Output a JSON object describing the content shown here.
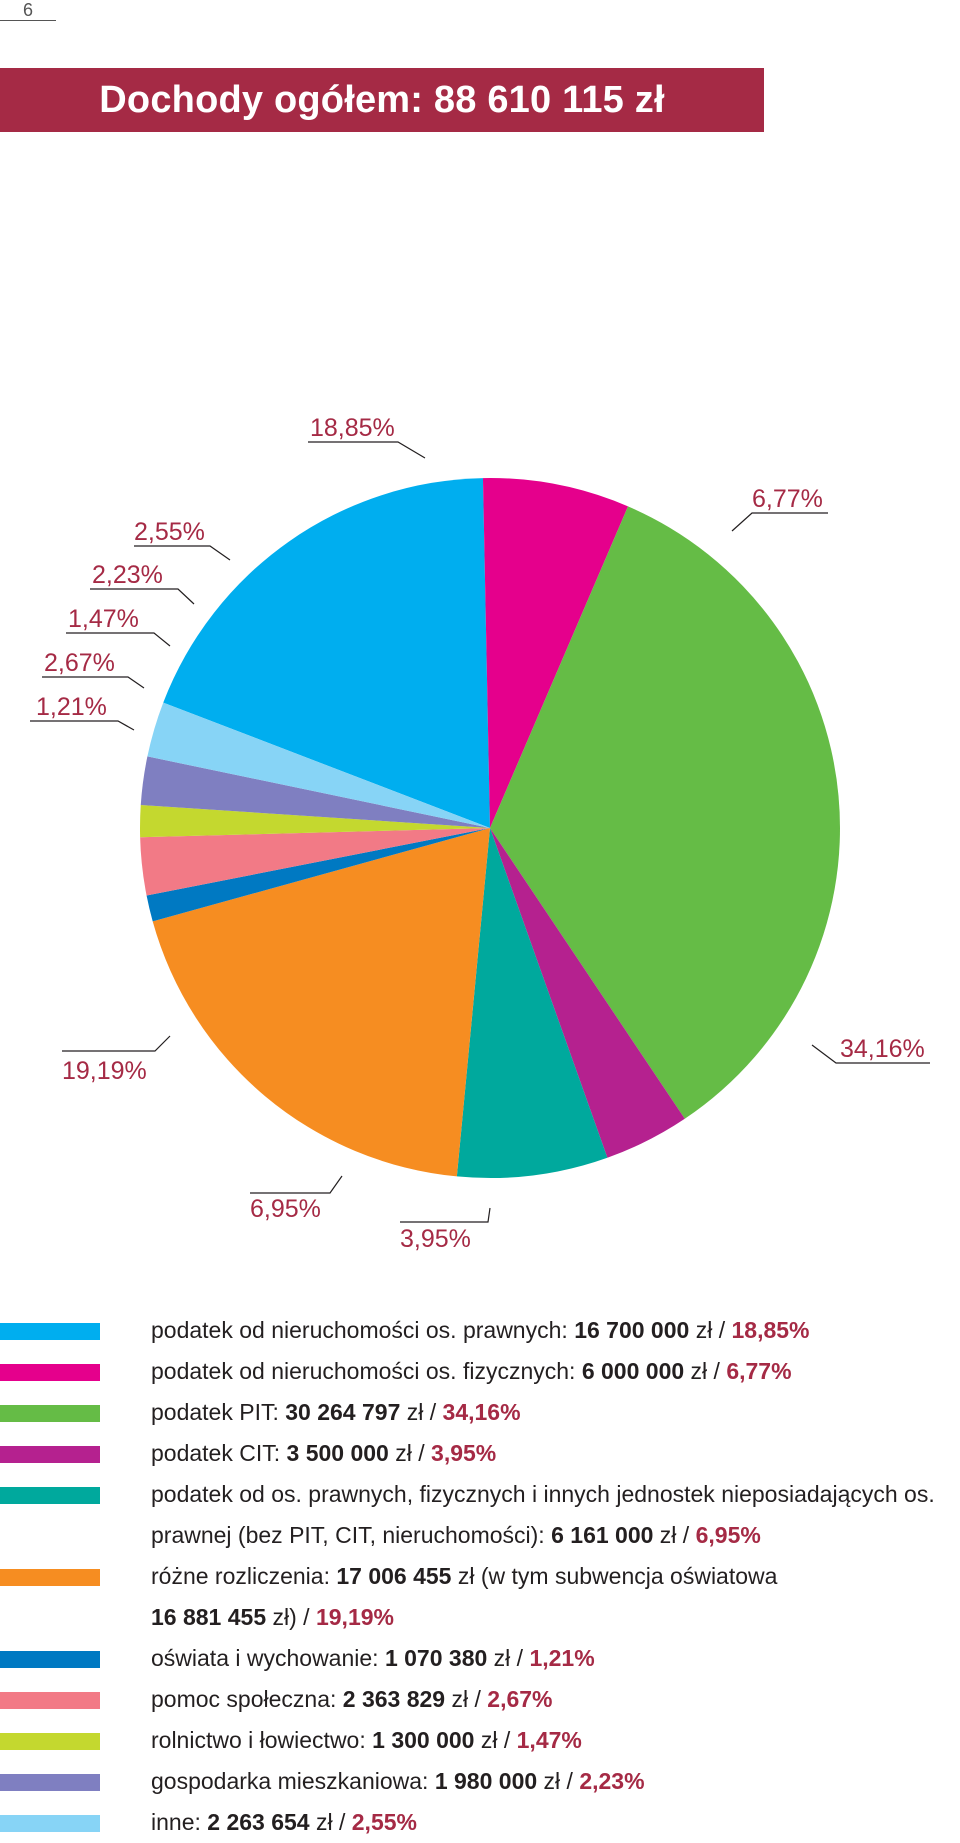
{
  "page_number": "6",
  "title": "Dochody ogółem: 88 610 115 zł",
  "chart_data": {
    "type": "pie",
    "title": "Dochody ogółem: 88 610 115 zł",
    "unit": "zł",
    "total": 88610115,
    "slices": [
      {
        "label": "podatek od nieruchomości os. prawnych",
        "value": 16700000,
        "percent": 18.85,
        "percent_label": "18,85%",
        "color": "#00aeef"
      },
      {
        "label": "podatek od nieruchomości os. fizycznych",
        "value": 6000000,
        "percent": 6.77,
        "percent_label": "6,77%",
        "color": "#e5008c"
      },
      {
        "label": "podatek PIT",
        "value": 30264797,
        "percent": 34.16,
        "percent_label": "34,16%",
        "color": "#65bc46"
      },
      {
        "label": "podatek CIT",
        "value": 3500000,
        "percent": 3.95,
        "percent_label": "3,95%",
        "color": "#b5218f"
      },
      {
        "label": "podatek od os. prawnych, fizycznych i innych jednostek nieposiadających os. prawnej (bez PIT, CIT, nieruchomości)",
        "value": 6161000,
        "percent": 6.95,
        "percent_label": "6,95%",
        "color": "#00a99d"
      },
      {
        "label": "różne rozliczenia",
        "value": 17006455,
        "percent": 19.19,
        "percent_label": "19,19%",
        "color": "#f68d21"
      },
      {
        "label": "oświata i wychowanie",
        "value": 1070380,
        "percent": 1.21,
        "percent_label": "1,21%",
        "color": "#0079c2"
      },
      {
        "label": "pomoc społeczna",
        "value": 2363829,
        "percent": 2.67,
        "percent_label": "2,67%",
        "color": "#f27a86"
      },
      {
        "label": "rolnictwo i łowiectwo",
        "value": 1300000,
        "percent": 1.47,
        "percent_label": "1,47%",
        "color": "#c4d82f"
      },
      {
        "label": "gospodarka mieszkaniowa",
        "value": 1980000,
        "percent": 2.23,
        "percent_label": "2,23%",
        "color": "#7f7fc1"
      },
      {
        "label": "inne",
        "value": 2263654,
        "percent": 2.55,
        "percent_label": "2,55%",
        "color": "#87d4f6"
      }
    ],
    "label_color": "#a52a45"
  },
  "legend": [
    {
      "text": "podatek od nieruchomości os. prawnych: ",
      "amount": "16 700 000",
      "unit": " zł / ",
      "pct": "18,85%",
      "color": "#00aeef"
    },
    {
      "text": "podatek od nieruchomości os. fizycznych: ",
      "amount": "6 000 000",
      "unit": " zł / ",
      "pct": "6,77%",
      "color": "#e5008c"
    },
    {
      "text": "podatek PIT: ",
      "amount": "30 264 797",
      "unit": " zł / ",
      "pct": "34,16%",
      "color": "#65bc46"
    },
    {
      "text": "podatek CIT: ",
      "amount": "3 500 000",
      "unit": " zł / ",
      "pct": "3,95%",
      "color": "#b5218f"
    },
    {
      "text": "podatek od os. prawnych, fizycznych i innych jednostek nieposiadających os. prawnej (bez PIT, CIT, nieruchomości): ",
      "amount": "6 161 000",
      "unit": " zł / ",
      "pct": "6,95%",
      "color": "#00a99d"
    },
    {
      "text": "różne rozliczenia: ",
      "amount": "17 006 455",
      "unit": " zł (w tym subwencja oświatowa ",
      "amount2": "16 881 455",
      "unit2": " zł) / ",
      "pct": "19,19%",
      "color": "#f68d21"
    },
    {
      "text": "oświata i wychowanie: ",
      "amount": "1 070 380",
      "unit": " zł / ",
      "pct": "1,21%",
      "color": "#0079c2"
    },
    {
      "text": "pomoc społeczna: ",
      "amount": "2 363 829",
      "unit": " zł / ",
      "pct": "2,67%",
      "color": "#f27a86"
    },
    {
      "text": "rolnictwo i łowiectwo: ",
      "amount": "1 300 000",
      "unit": " zł / ",
      "pct": "1,47%",
      "color": "#c4d82f"
    },
    {
      "text": "gospodarka mieszkaniowa: ",
      "amount": "1 980 000",
      "unit": " zł / ",
      "pct": "2,23%",
      "color": "#7f7fc1"
    },
    {
      "text": "inne: ",
      "amount": "2 263 654",
      "unit": " zł / ",
      "pct": "2,55%",
      "color": "#87d4f6"
    }
  ]
}
